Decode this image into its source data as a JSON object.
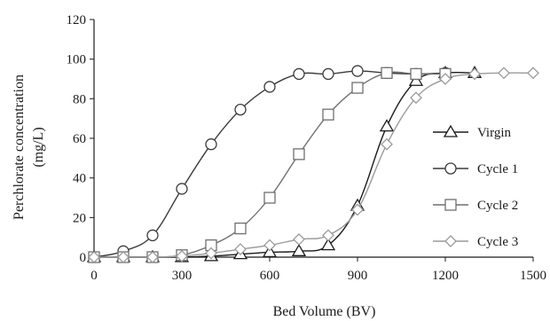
{
  "chart_data": {
    "type": "line",
    "title": "",
    "xlabel": "Bed Volume (BV)",
    "ylabel": "Perchlorate concentration (mg/L)",
    "ylabel_lines": [
      "Perchlorate concentration",
      "(mg/L)"
    ],
    "xlim": [
      0,
      1500
    ],
    "ylim": [
      0,
      120
    ],
    "xticks": [
      0,
      300,
      600,
      900,
      1200,
      1500
    ],
    "yticks": [
      0,
      20,
      40,
      60,
      80,
      100,
      120
    ],
    "grid": false,
    "legend_position": "right",
    "series": [
      {
        "name": "Virgin",
        "marker": "triangle",
        "color": "#1a1a1a",
        "points": [
          [
            0,
            0
          ],
          [
            100,
            0
          ],
          [
            200,
            0
          ],
          [
            300,
            0
          ],
          [
            400,
            0.5
          ],
          [
            500,
            1.5
          ],
          [
            600,
            2.5
          ],
          [
            700,
            3
          ],
          [
            800,
            6
          ],
          [
            900,
            26
          ],
          [
            1000,
            66
          ],
          [
            1100,
            89
          ],
          [
            1200,
            93
          ],
          [
            1300,
            93
          ]
        ]
      },
      {
        "name": "Cycle 1",
        "marker": "circle",
        "color": "#3a3a3a",
        "points": [
          [
            0,
            0
          ],
          [
            100,
            3
          ],
          [
            200,
            11
          ],
          [
            300,
            34.5
          ],
          [
            400,
            57
          ],
          [
            500,
            74.5
          ],
          [
            600,
            86
          ],
          [
            700,
            92.5
          ],
          [
            800,
            92.5
          ],
          [
            900,
            94
          ],
          [
            1000,
            93
          ],
          [
            1100,
            92.5
          ],
          [
            1200,
            93
          ]
        ]
      },
      {
        "name": "Cycle 2",
        "marker": "square",
        "color": "#6f6f6f",
        "points": [
          [
            0,
            0
          ],
          [
            100,
            0
          ],
          [
            200,
            0
          ],
          [
            300,
            1
          ],
          [
            400,
            6
          ],
          [
            500,
            14.5
          ],
          [
            600,
            30
          ],
          [
            700,
            52
          ],
          [
            800,
            72
          ],
          [
            900,
            85.5
          ],
          [
            1000,
            93
          ],
          [
            1100,
            92.5
          ],
          [
            1200,
            92.5
          ]
        ]
      },
      {
        "name": "Cycle 3",
        "marker": "diamond",
        "color": "#9a9a9a",
        "points": [
          [
            0,
            0
          ],
          [
            100,
            0
          ],
          [
            200,
            0
          ],
          [
            300,
            0.5
          ],
          [
            400,
            2
          ],
          [
            500,
            4
          ],
          [
            600,
            6
          ],
          [
            700,
            9
          ],
          [
            800,
            11
          ],
          [
            900,
            24
          ],
          [
            1000,
            57
          ],
          [
            1100,
            80.5
          ],
          [
            1200,
            90
          ],
          [
            1300,
            92.5
          ],
          [
            1400,
            93
          ],
          [
            1500,
            93
          ]
        ]
      }
    ]
  }
}
